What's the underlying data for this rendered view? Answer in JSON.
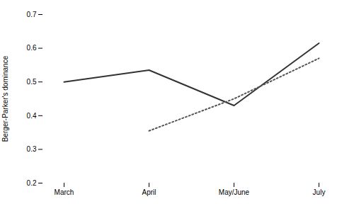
{
  "chart_data": {
    "type": "line",
    "categories": [
      "March",
      "April",
      "May/June",
      "July"
    ],
    "series": [
      {
        "color": "#333333",
        "line_style": "solid",
        "values": [
          0.5,
          0.535,
          0.43,
          0.615
        ]
      },
      {
        "color": "#555555",
        "line_style": "dotted",
        "values": [
          null,
          0.355,
          0.45,
          0.57
        ]
      }
    ],
    "ylabel": "Berger-Parker's dominance",
    "ylim": [
      0.2,
      0.7
    ],
    "yticks": [
      0.2,
      0.3,
      0.4,
      0.5,
      0.6,
      0.7
    ],
    "grid": false
  }
}
